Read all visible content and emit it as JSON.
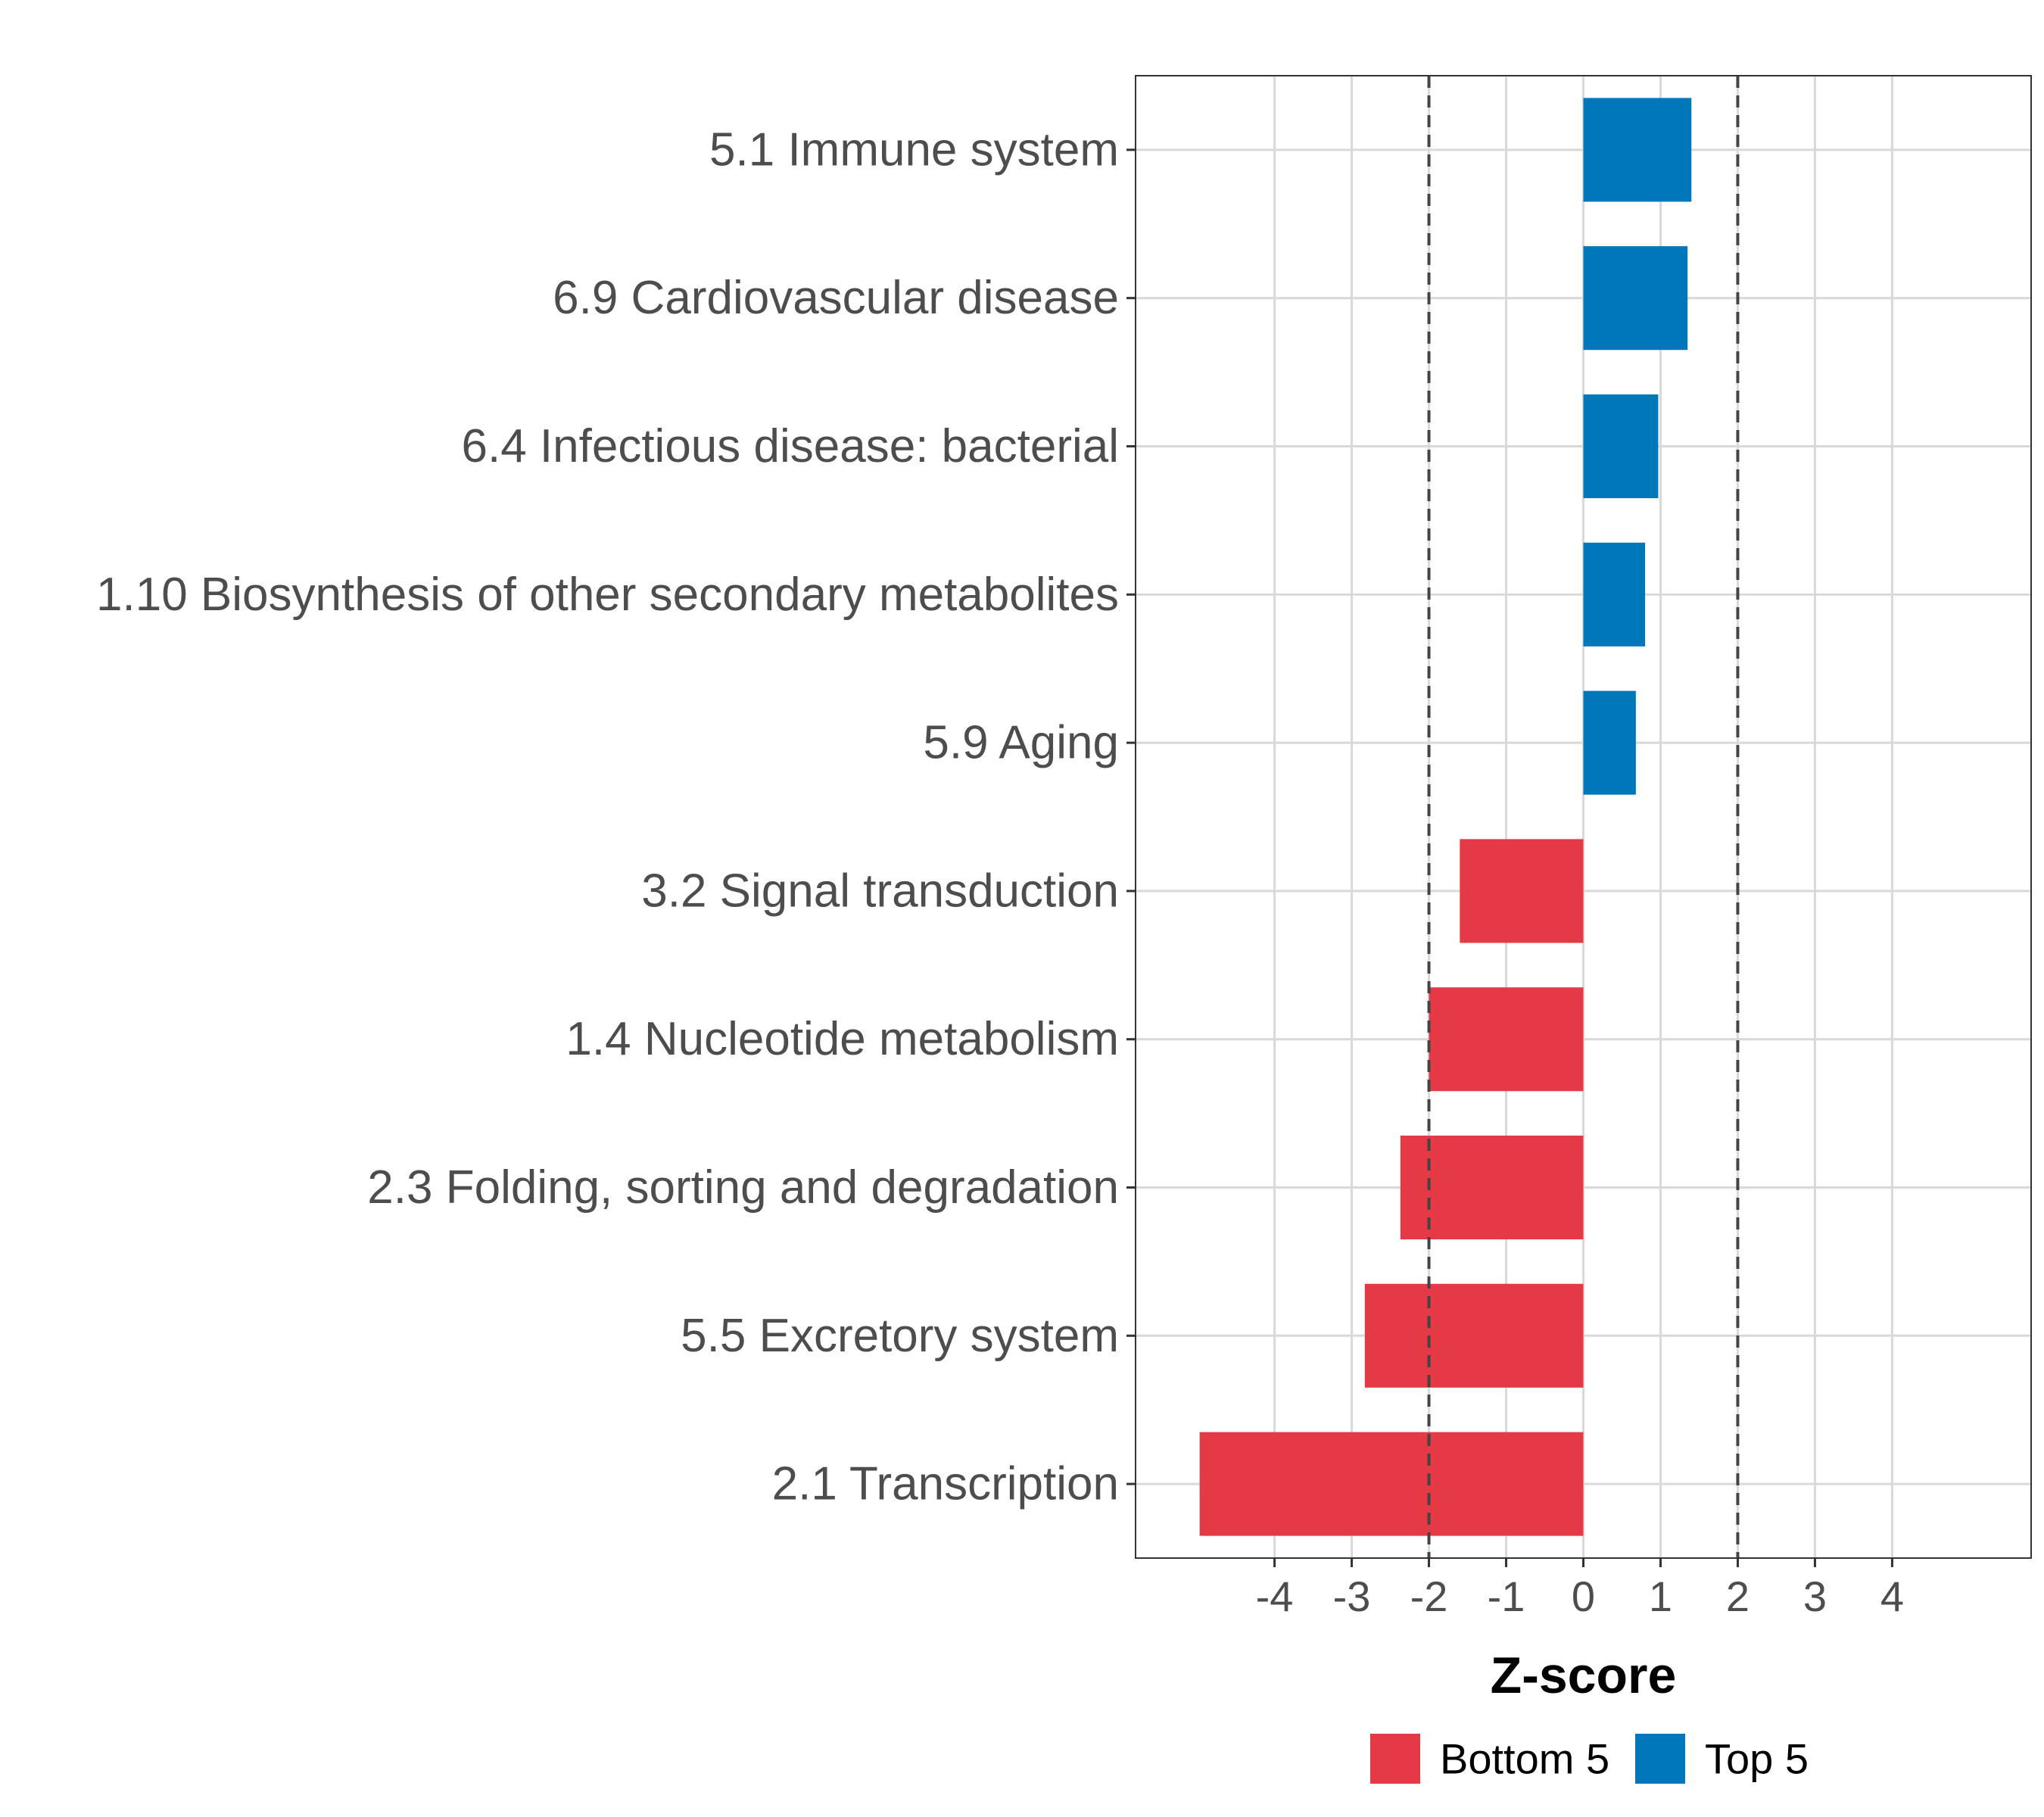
{
  "chart_data": {
    "type": "bar",
    "orientation": "horizontal",
    "title": "",
    "xlabel": "Z-score",
    "ylabel": "",
    "xlim": [
      -5.8,
      5.8
    ],
    "xticks": [
      -4,
      -3,
      -2,
      -1,
      0,
      1,
      2,
      3,
      4
    ],
    "xtick_labels": [
      "-4",
      "-3",
      "-2",
      "-1",
      "0",
      "1",
      "2",
      "3",
      "4"
    ],
    "reference_lines": [
      -2,
      2
    ],
    "grid": true,
    "legend_position": "bottom",
    "categories": [
      "5.1 Immune system",
      "6.9 Cardiovascular disease",
      "6.4 Infectious disease: bacterial",
      "1.10 Biosynthesis of other secondary metabolites",
      "5.9 Aging",
      "3.2 Signal transduction",
      "1.4 Nucleotide metabolism",
      "2.3 Folding, sorting and degradation",
      "5.5 Excretory system",
      "2.1 Transcription"
    ],
    "values": [
      1.4,
      1.35,
      0.97,
      0.8,
      0.68,
      -1.6,
      -2.0,
      -2.37,
      -2.83,
      -4.97
    ],
    "groups": [
      "Top 5",
      "Top 5",
      "Top 5",
      "Top 5",
      "Top 5",
      "Bottom 5",
      "Bottom 5",
      "Bottom 5",
      "Bottom 5",
      "Bottom 5"
    ],
    "legend": [
      {
        "name": "Bottom 5",
        "color": "#E63946"
      },
      {
        "name": "Top 5",
        "color": "#0077BB"
      }
    ]
  }
}
